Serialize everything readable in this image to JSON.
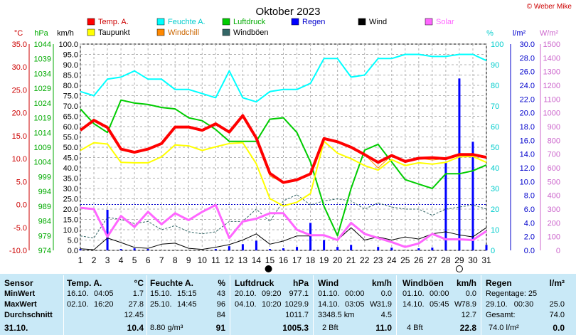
{
  "chart_data": {
    "type": "line",
    "title": "Oktober 2023",
    "credit": "© Weber Mike",
    "x": [
      1,
      2,
      3,
      4,
      5,
      6,
      7,
      8,
      9,
      10,
      11,
      12,
      13,
      14,
      15,
      16,
      17,
      18,
      19,
      20,
      21,
      22,
      23,
      24,
      25,
      26,
      27,
      28,
      29,
      30,
      31
    ],
    "axes": {
      "temp_c": {
        "label": "°C",
        "color": "#cc0000",
        "min": -10,
        "max": 35,
        "ticks": [
          "35.0",
          "30.0",
          "25.0",
          "20.0",
          "15.0",
          "10.0",
          "5.0",
          "0.0",
          "-5.0",
          "-10.0"
        ]
      },
      "pressure_hpa": {
        "label": "hPa",
        "color": "#00aa00",
        "min": 974,
        "max": 1044,
        "ticks": [
          "1044",
          "1039",
          "1034",
          "1029",
          "1024",
          "1019",
          "1014",
          "1009",
          "1004",
          "999",
          "994",
          "989",
          "984",
          "979",
          "974"
        ]
      },
      "wind_kmh": {
        "label": "km/h",
        "color": "#000000",
        "min": 0,
        "max": 100,
        "ticks": [
          "100.0",
          "95.0",
          "90.0",
          "85.0",
          "80.0",
          "75.0",
          "70.0",
          "65.0",
          "60.0",
          "55.0",
          "50.0",
          "45.0",
          "40.0",
          "35.0",
          "30.0",
          "25.0",
          "20.0",
          "15.0",
          "10.0",
          "5.0",
          "0.0"
        ]
      },
      "humidity_pct": {
        "label": "%",
        "color": "#00cccc",
        "min": 0,
        "max": 100,
        "ticks": [
          "100",
          "90",
          "80",
          "70",
          "60",
          "50",
          "40",
          "30",
          "20",
          "10",
          "0"
        ]
      },
      "rain_lm2": {
        "label": "l/m²",
        "color": "#0000cc",
        "min": 0,
        "max": 30,
        "ticks": [
          "30.0",
          "28.0",
          "26.0",
          "24.0",
          "22.0",
          "20.0",
          "18.0",
          "16.0",
          "14.0",
          "12.0",
          "10.0",
          "8.0",
          "6.0",
          "4.0",
          "2.0",
          "0.0"
        ]
      },
      "solar_wm2": {
        "label": "W/m²",
        "color": "#cc66cc",
        "min": 0,
        "max": 1500,
        "ticks": [
          "1500",
          "1400",
          "1300",
          "1200",
          "1100",
          "1000",
          "900",
          "800",
          "700",
          "600",
          "500",
          "400",
          "300",
          "200",
          "100",
          "0"
        ]
      }
    },
    "legend": [
      {
        "name": "Temp. A.",
        "color": "#ff0000"
      },
      {
        "name": "Feuchte A.",
        "color": "#00ffff"
      },
      {
        "name": "Luftdruck",
        "color": "#00cc00"
      },
      {
        "name": "Regen",
        "color": "#0000ff"
      },
      {
        "name": "Wind",
        "color": "#000000"
      },
      {
        "name": "Solar",
        "color": "#ff66ff"
      },
      {
        "name": "Taupunkt",
        "color": "#ffff00"
      },
      {
        "name": "Windchill",
        "color": "#ff8800"
      },
      {
        "name": "Windböen",
        "color": "#336666"
      }
    ],
    "series": [
      {
        "name": "Temp. A.",
        "axis": "temp_c",
        "color": "#ff0000",
        "width": 4,
        "values": [
          16.2,
          18.4,
          16.8,
          12.1,
          11.4,
          12.1,
          13.3,
          16.9,
          16.9,
          16.2,
          17.6,
          15.8,
          19.4,
          14.5,
          6.8,
          4.8,
          5.4,
          6.7,
          14.4,
          13.7,
          12.5,
          10.9,
          9.2,
          10.7,
          9.4,
          10.1,
          10.2,
          10.0,
          10.9,
          10.9,
          10.3
        ]
      },
      {
        "name": "Taupunkt",
        "axis": "temp_c",
        "color": "#ffff00",
        "width": 2,
        "values": [
          11.8,
          13.5,
          13.2,
          9.2,
          9.1,
          9.1,
          10.4,
          13.0,
          12.8,
          11.8,
          12.6,
          13.3,
          13.5,
          8.9,
          1.3,
          -0.3,
          0.5,
          2.4,
          13.8,
          11.2,
          10.0,
          8.5,
          7.5,
          9.8,
          8.5,
          9.1,
          8.8,
          9.2,
          10.4,
          10.5,
          9.2
        ]
      },
      {
        "name": "Windchill",
        "axis": "temp_c",
        "color": "#ff8800",
        "width": 1,
        "values": [
          16.2,
          18.4,
          16.8,
          12.1,
          11.4,
          12.1,
          13.3,
          16.9,
          16.9,
          16.2,
          17.6,
          15.8,
          19.4,
          14.5,
          6.2,
          4.8,
          5.4,
          6.7,
          14.4,
          13.7,
          12.5,
          10.9,
          8.0,
          10.7,
          9.4,
          10.1,
          9.7,
          10.0,
          10.9,
          10.9,
          10.3
        ]
      },
      {
        "name": "Feuchte A.",
        "axis": "humidity_pct",
        "color": "#00ffff",
        "width": 2,
        "values": [
          77,
          75,
          83,
          84,
          87,
          83,
          83,
          78,
          78,
          76,
          74,
          87,
          74,
          72,
          77,
          78,
          78,
          81,
          93,
          93,
          84,
          85,
          93,
          93,
          95,
          95,
          94,
          94,
          95,
          95,
          92
        ]
      },
      {
        "name": "Luftdruck",
        "axis": "pressure_hpa",
        "color": "#00cc00",
        "width": 2,
        "values": [
          1022,
          1017,
          1014,
          1025,
          1024,
          1023.5,
          1022.5,
          1022,
          1019,
          1018,
          1015,
          1011,
          1011,
          1011,
          1018.5,
          1019,
          1014,
          1004,
          989,
          979,
          995,
          1008,
          1010,
          1004,
          998,
          996.5,
          995,
          1000,
          1000,
          1001,
          1003
        ]
      },
      {
        "name": "Wind",
        "axis": "wind_kmh",
        "color": "#000000",
        "width": 1,
        "values": [
          0.8,
          0.3,
          6.0,
          3.8,
          1.4,
          1.0,
          3.0,
          3.5,
          1.0,
          0.5,
          1.5,
          2.8,
          5.0,
          8.0,
          3.0,
          4.5,
          7.0,
          7.0,
          7.5,
          5.0,
          11.0,
          5.0,
          6.5,
          5.0,
          6.5,
          5.5,
          8.0,
          9.0,
          7.5,
          6.5,
          11.0
        ]
      },
      {
        "name": "Windböen",
        "axis": "wind_kmh",
        "color": "#336666",
        "width": 1,
        "dash": true,
        "values": [
          7,
          6,
          16,
          15,
          13,
          14,
          10,
          12,
          9,
          8,
          9,
          14,
          14,
          20,
          14,
          24,
          27,
          22,
          24,
          25,
          24,
          20,
          23,
          21,
          20,
          20,
          17,
          20,
          21,
          22,
          20
        ]
      },
      {
        "name": "Solar",
        "axis": "solar_wm2",
        "color": "#ff66ff",
        "width": 3,
        "values": [
          310,
          300,
          100,
          250,
          170,
          280,
          190,
          270,
          220,
          280,
          330,
          90,
          210,
          230,
          270,
          270,
          150,
          110,
          110,
          75,
          200,
          120,
          90,
          60,
          25,
          50,
          120,
          80,
          80,
          75,
          140
        ]
      }
    ],
    "rain": {
      "name": "Regen",
      "axis": "rain_lm2",
      "color": "#0000ff",
      "values": [
        0.2,
        0,
        5.9,
        0.2,
        0.3,
        0.2,
        0,
        0,
        0,
        0,
        0.2,
        0.6,
        0.9,
        1.4,
        0.2,
        0.3,
        0.5,
        4.0,
        1.5,
        0.5,
        0.8,
        0,
        0.5,
        0.4,
        0,
        0.3,
        0.4,
        12.8,
        25,
        15.8,
        0.8
      ]
    },
    "markers": [
      {
        "day": 14.9,
        "symbol": "new moon"
      },
      {
        "day": 29,
        "symbol": "full moon"
      }
    ]
  },
  "stats": {
    "sensor": {
      "header": "Sensor",
      "rows": [
        "MinWert",
        "MaxWert",
        "Durchschnitt",
        "31.10."
      ]
    },
    "temp": {
      "header": "Temp. A.",
      "unit": "°C",
      "min_date": "16.10.",
      "min_time": "04:05",
      "min_val": "1.7",
      "max_date": "02.10.",
      "max_time": "16:20",
      "max_val": "27.8",
      "avg": "12.45",
      "cur": "10.4"
    },
    "hum": {
      "header": "Feuchte A.",
      "unit": "%",
      "min_date": "15.10.",
      "min_time": "15:15",
      "min_val": "43",
      "max_date": "25.10.",
      "max_time": "14:45",
      "max_val": "96",
      "avg": "84",
      "cur_extra": "8.80 g/m³",
      "cur": "91"
    },
    "pres": {
      "header": "Luftdruck",
      "unit": "hPa",
      "min_date": "20.10.",
      "min_time": "09:20",
      "min_val": "977.1",
      "max_date": "04.10.",
      "max_time": "10:20",
      "max_val": "1029.9",
      "avg": "1011.7",
      "cur": "1005.3"
    },
    "wind": {
      "header": "Wind",
      "unit": "km/h",
      "min_date": "01.10.",
      "min_time": "00:00",
      "min_val": "0.0",
      "max_date": "14.10.",
      "max_time": "03:05",
      "max_dir": "W",
      "max_val": "31.9",
      "avg_extra": "3348.5 km",
      "avg": "4.5",
      "cur_extra": "2 Bft",
      "cur": "11.0"
    },
    "gust": {
      "header": "Windböen",
      "unit": "km/h",
      "min_date": "01.10.",
      "min_time": "00:00",
      "min_val": "0.0",
      "max_date": "14.10.",
      "max_time": "05:45",
      "max_dir": "W",
      "max_val": "78.9",
      "avg": "12.7",
      "cur_extra": "4 Bft",
      "cur": "22.8"
    },
    "rain": {
      "header": "Regen",
      "unit": "l/m²",
      "row1_label": "Regentage: 25",
      "row2_label": "29.10.   00:30",
      "row2_val": "25.0",
      "row3_label": "Gesamt:",
      "row3_val": "74.0",
      "row4_label": "74.0 l/m²",
      "row4_val": "0.0"
    }
  }
}
